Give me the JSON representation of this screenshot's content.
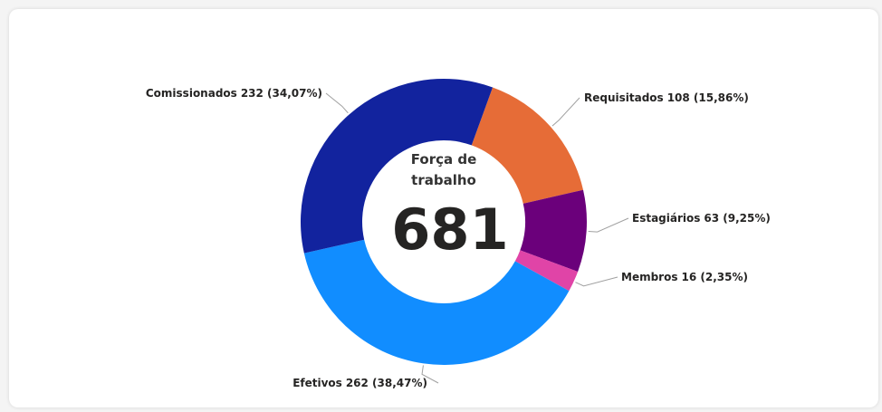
{
  "chart_data": {
    "type": "donut",
    "center_label": "Força de trabalho",
    "total": 681,
    "categories": [
      "Requisitados",
      "Estagiários",
      "Membros",
      "Efetivos",
      "Comissionados"
    ],
    "values": [
      108,
      63,
      16,
      262,
      232
    ],
    "value_labels": [
      "108 (15,86%)",
      "63 (9,25%)",
      "16 (2,35%)",
      "262 (38,47%)",
      "232 (34,07%)"
    ],
    "colors": [
      "#e66c37",
      "#6b007b",
      "#e044a7",
      "#118dff",
      "#12239e"
    ]
  }
}
